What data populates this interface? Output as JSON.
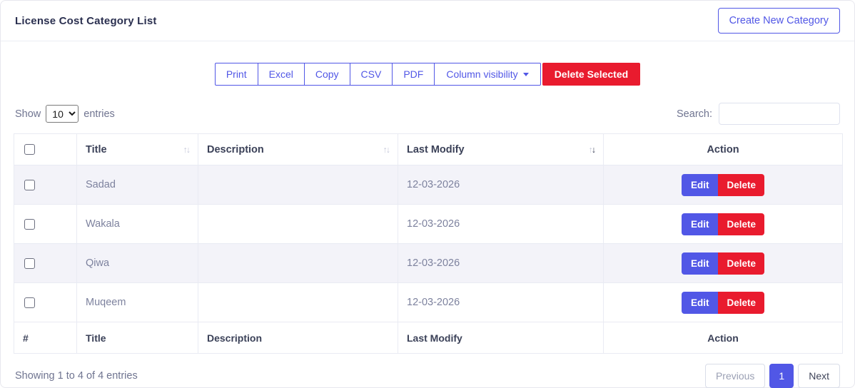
{
  "colors": {
    "accent": "#5157e6",
    "danger": "#e91b2e"
  },
  "header": {
    "title": "License Cost Category List",
    "create_button_label": "Create New Category"
  },
  "toolbar": {
    "export_buttons": [
      "Print",
      "Excel",
      "Copy",
      "CSV",
      "PDF"
    ],
    "column_visibility_label": "Column visibility",
    "delete_selected_label": "Delete Selected"
  },
  "controls": {
    "show_label": "Show",
    "page_size_selected": "10",
    "entries_label": "entries",
    "search_label": "Search:",
    "search_value": "",
    "search_placeholder": ""
  },
  "table": {
    "headers": {
      "title": "Title",
      "description": "Description",
      "last_modify": "Last Modify",
      "action": "Action"
    },
    "sort_state": {
      "sorted_column": "Last Modify",
      "direction": "desc"
    },
    "sort_glyphs": {
      "up": "↑",
      "down": "↓"
    },
    "rows": [
      {
        "title": "Sadad",
        "description": "",
        "last_modify": "12-03-2026"
      },
      {
        "title": "Wakala",
        "description": "",
        "last_modify": "12-03-2026"
      },
      {
        "title": "Qiwa",
        "description": "",
        "last_modify": "12-03-2026"
      },
      {
        "title": "Muqeem",
        "description": "",
        "last_modify": "12-03-2026"
      }
    ],
    "row_actions": {
      "edit_label": "Edit",
      "delete_label": "Delete"
    },
    "footer_headers": {
      "index": "#",
      "title": "Title",
      "description": "Description",
      "last_modify": "Last Modify",
      "action": "Action"
    }
  },
  "footer": {
    "summary": "Showing 1 to 4 of 4 entries",
    "pagination": {
      "previous_label": "Previous",
      "current_page": "1",
      "next_label": "Next"
    }
  }
}
